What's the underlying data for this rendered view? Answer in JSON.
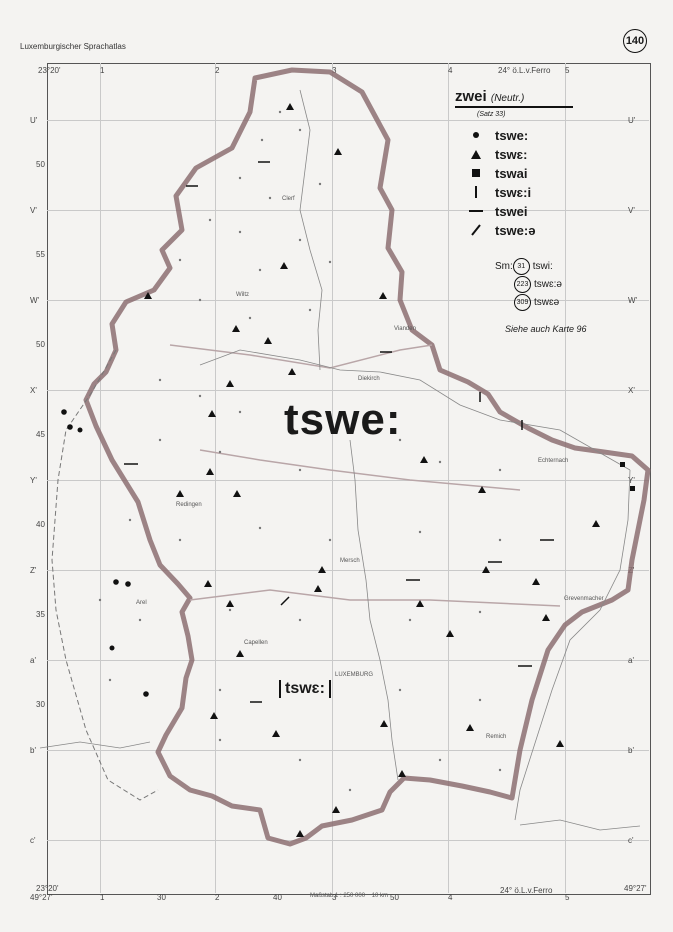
{
  "header": {
    "atlas_title": "Luxemburgischer Sprachatlas",
    "page_number": "140"
  },
  "legend": {
    "title": "zwei",
    "title_note": "(Neutr.)",
    "satz": "(Satz 33)",
    "entries": [
      {
        "symbol": "dot",
        "form": "tswe:"
      },
      {
        "symbol": "triangle",
        "form": "tswɛ:"
      },
      {
        "symbol": "square",
        "form": "tswai"
      },
      {
        "symbol": "vertical-bar",
        "form": "tswɛ:i"
      },
      {
        "symbol": "horizontal-bar",
        "form": "tswei"
      },
      {
        "symbol": "slash",
        "form": "tswe:ə"
      }
    ],
    "sm_label": "Sm:",
    "sm_entries": [
      {
        "num": "31",
        "form": "tswi:"
      },
      {
        "num": "223",
        "form": "tswɛ:ə"
      },
      {
        "num": "309",
        "form": "tswɛə"
      }
    ],
    "see_also": "Siehe auch Karte 96"
  },
  "map_labels": {
    "main_form": "tswe:",
    "secondary_form": "tswɛ:",
    "top_left_coord": "23°20'",
    "top_right_coord": "24° ö.L.v.Ferro",
    "bottom_left_coord": "23°20'",
    "bottom_right_coord": "24° ö.L.v.Ferro",
    "bottom_left_lat": "49°27'",
    "bottom_right_lat": "49°27'",
    "top_numbers": [
      "1",
      "2",
      "3",
      "4",
      "5"
    ],
    "bottom_numbers": [
      "1",
      "30",
      "2",
      "3",
      "40",
      "50",
      "4",
      "5"
    ],
    "row_labels_left": [
      "U'",
      "V'",
      "W'",
      "X'",
      "Y'",
      "Z'",
      "a'",
      "b'",
      "c'"
    ],
    "row_labels_right": [
      "U'",
      "V'",
      "W'",
      "X'",
      "Y'",
      "Z'",
      "a'",
      "b'",
      "c'"
    ],
    "lat_labels_left": [
      "50",
      "55",
      "50",
      "45",
      "40",
      "35",
      "30"
    ],
    "scale_text": "Maßstab 1 : 250 000",
    "scale_km": "10 km",
    "places": [
      "Clerf",
      "Wiltz",
      "Vianden",
      "Diekirch",
      "Echternach",
      "Redingen",
      "Mersch",
      "Arel",
      "Capellen",
      "LUXEMBURG",
      "Remich",
      "Grevenmacher"
    ]
  }
}
